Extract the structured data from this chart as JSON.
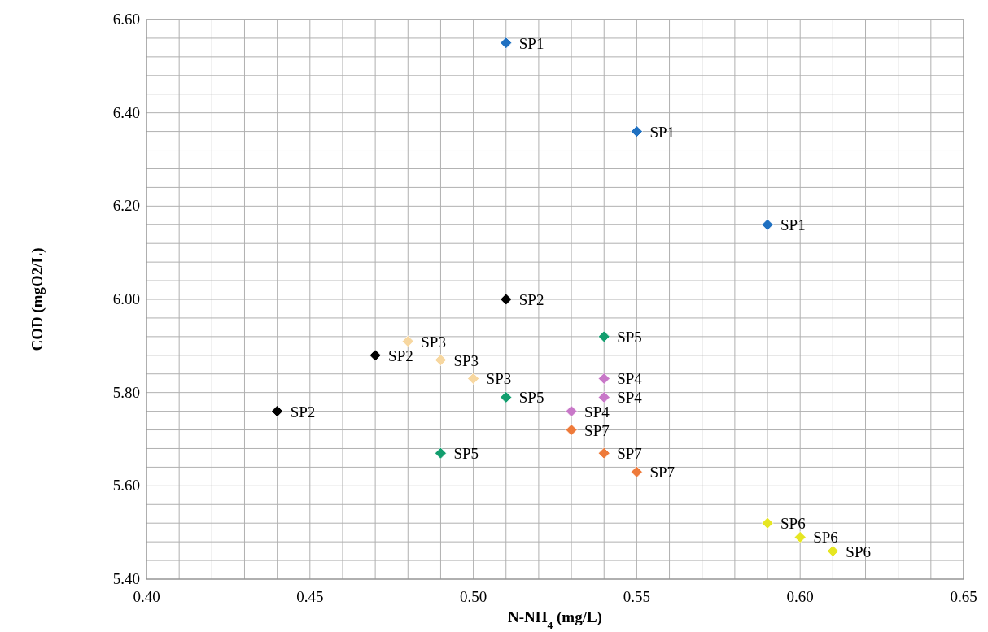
{
  "chart_data": {
    "type": "scatter",
    "xlabel": "N-NH$_{4}$ (mg/L)",
    "ylabel": "COD (mgO2/L)",
    "marker": "diamond",
    "grid": true,
    "xlim": [
      0.4,
      0.65
    ],
    "ylim": [
      5.4,
      6.6
    ],
    "xticks": [
      {
        "value": 0.4,
        "label": "0.40"
      },
      {
        "value": 0.41,
        "label": null
      },
      {
        "value": 0.42,
        "label": null
      },
      {
        "value": 0.43,
        "label": null
      },
      {
        "value": 0.44,
        "label": null
      },
      {
        "value": 0.45,
        "label": "0.45"
      },
      {
        "value": 0.46,
        "label": null
      },
      {
        "value": 0.47,
        "label": null
      },
      {
        "value": 0.48,
        "label": null
      },
      {
        "value": 0.49,
        "label": null
      },
      {
        "value": 0.5,
        "label": "0.50"
      },
      {
        "value": 0.51,
        "label": null
      },
      {
        "value": 0.52,
        "label": null
      },
      {
        "value": 0.53,
        "label": null
      },
      {
        "value": 0.54,
        "label": null
      },
      {
        "value": 0.55,
        "label": "0.55"
      },
      {
        "value": 0.56,
        "label": null
      },
      {
        "value": 0.57,
        "label": null
      },
      {
        "value": 0.58,
        "label": null
      },
      {
        "value": 0.59,
        "label": null
      },
      {
        "value": 0.6,
        "label": "0.60"
      },
      {
        "value": 0.61,
        "label": null
      },
      {
        "value": 0.62,
        "label": null
      },
      {
        "value": 0.63,
        "label": null
      },
      {
        "value": 0.64,
        "label": null
      },
      {
        "value": 0.65,
        "label": "0.65"
      }
    ],
    "yticks": [
      {
        "value": 5.4,
        "label": "5.40"
      },
      {
        "value": 5.44,
        "label": null
      },
      {
        "value": 5.48,
        "label": null
      },
      {
        "value": 5.52,
        "label": null
      },
      {
        "value": 5.56,
        "label": null
      },
      {
        "value": 5.6,
        "label": "5.60"
      },
      {
        "value": 5.64,
        "label": null
      },
      {
        "value": 5.68,
        "label": null
      },
      {
        "value": 5.72,
        "label": null
      },
      {
        "value": 5.76,
        "label": null
      },
      {
        "value": 5.8,
        "label": "5.80"
      },
      {
        "value": 5.84,
        "label": null
      },
      {
        "value": 5.88,
        "label": null
      },
      {
        "value": 5.92,
        "label": null
      },
      {
        "value": 5.96,
        "label": null
      },
      {
        "value": 6.0,
        "label": "6.00"
      },
      {
        "value": 6.04,
        "label": null
      },
      {
        "value": 6.08,
        "label": null
      },
      {
        "value": 6.12,
        "label": null
      },
      {
        "value": 6.16,
        "label": null
      },
      {
        "value": 6.2,
        "label": "6.20"
      },
      {
        "value": 6.24,
        "label": null
      },
      {
        "value": 6.28,
        "label": null
      },
      {
        "value": 6.32,
        "label": null
      },
      {
        "value": 6.36,
        "label": null
      },
      {
        "value": 6.4,
        "label": "6.40"
      },
      {
        "value": 6.44,
        "label": null
      },
      {
        "value": 6.48,
        "label": null
      },
      {
        "value": 6.52,
        "label": null
      },
      {
        "value": 6.56,
        "label": null
      },
      {
        "value": 6.6,
        "label": "6.60"
      }
    ],
    "series": [
      {
        "name": "SP1",
        "color": "#1f70c1",
        "x": [
          0.51,
          0.55,
          0.59
        ],
        "values": [
          6.55,
          6.36,
          6.16
        ]
      },
      {
        "name": "SP2",
        "color": "#000000",
        "x": [
          0.51,
          0.47,
          0.44
        ],
        "values": [
          6.0,
          5.88,
          5.76
        ]
      },
      {
        "name": "SP3",
        "color": "#f7d7a0",
        "x": [
          0.48,
          0.49,
          0.5
        ],
        "values": [
          5.91,
          5.87,
          5.83
        ]
      },
      {
        "name": "SP4",
        "color": "#c878c8",
        "x": [
          0.54,
          0.54,
          0.53
        ],
        "values": [
          5.83,
          5.79,
          5.76
        ]
      },
      {
        "name": "SP5",
        "color": "#129e6e",
        "x": [
          0.54,
          0.51,
          0.49
        ],
        "values": [
          5.92,
          5.79,
          5.67
        ]
      },
      {
        "name": "SP6",
        "color": "#e6e622",
        "x": [
          0.59,
          0.6,
          0.61
        ],
        "values": [
          5.52,
          5.49,
          5.46
        ]
      },
      {
        "name": "SP7",
        "color": "#ee7a3a",
        "x": [
          0.53,
          0.54,
          0.55
        ],
        "values": [
          5.72,
          5.67,
          5.63
        ]
      }
    ]
  }
}
